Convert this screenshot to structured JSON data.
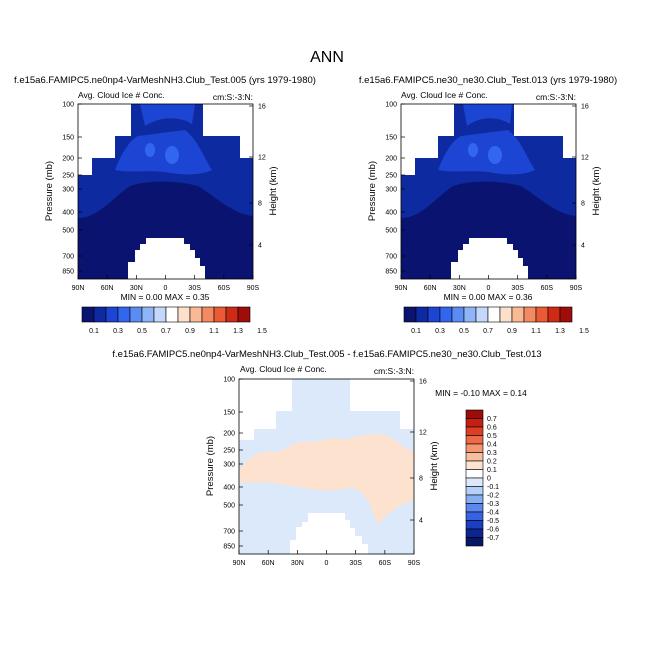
{
  "figure": {
    "title": "ANN",
    "cbar_ticks_abs": [
      "0.1",
      "0.3",
      "0.5",
      "0.7",
      "0.9",
      "1.1",
      "1.3",
      "1.5"
    ],
    "cbar_ticks_diff": [
      "0.7",
      "0.6",
      "0.5",
      "0.4",
      "0.3",
      "0.2",
      "0.1",
      "0",
      "-0.1",
      "-0.2",
      "-0.3",
      "-0.4",
      "-0.5",
      "-0.6",
      "-0.7"
    ]
  },
  "colors": {
    "abs": [
      "#0a1470",
      "#0d2aa0",
      "#1b45d2",
      "#3366ee",
      "#5a8cf4",
      "#8fb4f8",
      "#c3d8fb",
      "#ffffff",
      "#fde0cb",
      "#f9b994",
      "#f38a62",
      "#ea5a35",
      "#cf2a16",
      "#9f0d0a"
    ],
    "diff": [
      "#9a0d0a",
      "#c51f12",
      "#de3e23",
      "#ee6a44",
      "#f59672",
      "#f9bea0",
      "#fde2d0",
      "#ffffff",
      "#dbe9fb",
      "#b4d0f8",
      "#86aef4",
      "#5b88ee",
      "#3563e2",
      "#1b3fc0",
      "#0d2593",
      "#071766"
    ]
  },
  "chart_data": [
    {
      "type": "heatmap",
      "title": "f.e15a6.FAMIPC5.ne0np4-VarMeshNH3.Club_Test.005 (yrs 1979-1980)",
      "left_string": "Avg. Cloud Ice # Conc.",
      "right_string": "cm:S:-3:N:",
      "ylabel": "Pressure (mb)",
      "ylabel_right": "Height (km)",
      "xticks": [
        "90N",
        "60N",
        "30N",
        "0",
        "30S",
        "60S",
        "90S"
      ],
      "yticks": [
        "100",
        "150",
        "200",
        "250",
        "300",
        "400",
        "500",
        "700",
        "850"
      ],
      "yticks_right": [
        "16",
        "12",
        "8",
        "4"
      ],
      "min_max": "MIN =  0.00  MAX =  0.35",
      "min": 0.0,
      "max": 0.35
    },
    {
      "type": "heatmap",
      "title": "f.e15a6.FAMIPC5.ne30_ne30.Club_Test.013 (yrs 1979-1980)",
      "left_string": "Avg. Cloud Ice # Conc.",
      "right_string": "cm:S:-3:N:",
      "ylabel": "Pressure (mb)",
      "ylabel_right": "Height (km)",
      "xticks": [
        "90N",
        "60N",
        "30N",
        "0",
        "30S",
        "60S",
        "90S"
      ],
      "yticks": [
        "100",
        "150",
        "200",
        "250",
        "300",
        "400",
        "500",
        "700",
        "850"
      ],
      "yticks_right": [
        "16",
        "12",
        "8",
        "4"
      ],
      "min_max": "MIN =  0.00  MAX =  0.36",
      "min": 0.0,
      "max": 0.36
    },
    {
      "type": "heatmap",
      "title": "f.e15a6.FAMIPC5.ne0np4-VarMeshNH3.Club_Test.005 - f.e15a6.FAMIPC5.ne30_ne30.Club_Test.013",
      "left_string": "Avg. Cloud Ice # Conc.",
      "right_string": "cm:S:-3:N:",
      "ylabel": "Pressure (mb)",
      "ylabel_right": "Height (km)",
      "xticks": [
        "90N",
        "60N",
        "30N",
        "0",
        "30S",
        "60S",
        "90S"
      ],
      "yticks": [
        "100",
        "150",
        "200",
        "250",
        "300",
        "400",
        "500",
        "700",
        "850"
      ],
      "yticks_right": [
        "16",
        "12",
        "8",
        "4"
      ],
      "min_max": "MIN = -0.10  MAX =  0.14",
      "min": -0.1,
      "max": 0.14
    }
  ]
}
